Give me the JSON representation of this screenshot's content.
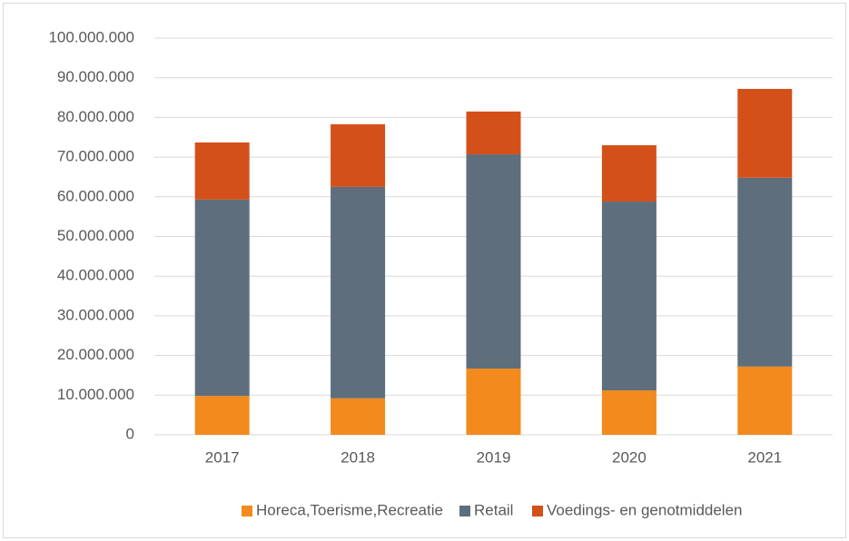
{
  "chart_data": {
    "type": "stacked_bar",
    "categories": [
      "2017",
      "2018",
      "2019",
      "2020",
      "2021"
    ],
    "series": [
      {
        "name": "Horeca,Toerisme,Recreatie",
        "color": "#f28a1e",
        "values": [
          9800000,
          9200000,
          16700000,
          11200000,
          17200000
        ]
      },
      {
        "name": "Retail",
        "color": "#5e6e7c",
        "values": [
          49500000,
          53300000,
          54000000,
          47600000,
          47600000
        ]
      },
      {
        "name": "Voedings- en genotmiddelen",
        "color": "#d4501a",
        "values": [
          14400000,
          15800000,
          10800000,
          14200000,
          22400000
        ]
      }
    ],
    "ylim": [
      0,
      100000000
    ],
    "yticks": [
      0,
      {
        "value": 10000000,
        "label": "10.000.000"
      },
      {
        "value": 20000000,
        "label": "20.000.000"
      },
      {
        "value": 30000000,
        "label": "30.000.000"
      },
      {
        "value": 40000000,
        "label": "40.000.000"
      },
      {
        "value": 50000000,
        "label": "50.000.000"
      },
      {
        "value": 60000000,
        "label": "60.000.000"
      },
      {
        "value": 70000000,
        "label": "70.000.000"
      },
      {
        "value": 80000000,
        "label": "80.000.000"
      },
      {
        "value": 90000000,
        "label": "90.000.000"
      },
      {
        "value": 100000000,
        "label": "100.000.000"
      }
    ],
    "grid": true,
    "legend": "bottom"
  }
}
